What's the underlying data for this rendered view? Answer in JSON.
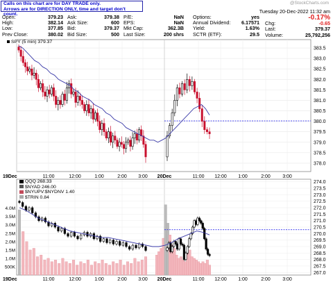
{
  "notice": {
    "line1": "Calls on this chart are for DAY TRADE only.",
    "line2": "Arrows are for DIRECTION ONLY, time and target don't count."
  },
  "quote": {
    "col1": [
      {
        "k": "Open:",
        "v": "379.23"
      },
      {
        "k": "High:",
        "v": "382.14"
      },
      {
        "k": "Low:",
        "v": "377.85"
      },
      {
        "k": "Prev Close:",
        "v": "380.02"
      }
    ],
    "col2": [
      {
        "k": "Ask:",
        "v": "379.38"
      },
      {
        "k": "Ask Size:",
        "v": "600"
      },
      {
        "k": "Bid:",
        "v": "379.37"
      },
      {
        "k": "Bid Size:",
        "v": "500"
      }
    ],
    "col3": [
      {
        "k": "P/E:",
        "v": "NaN"
      },
      {
        "k": "EPS:",
        "v": "NaN"
      },
      {
        "k": "Mkt Cap:",
        "v": "362.3B"
      },
      {
        "k": "Last Size:",
        "v": "200 shrs"
      }
    ],
    "col4": [
      {
        "k": "Options:",
        "v": "yes"
      },
      {
        "k": "Annual Dividend:",
        "v": "6.17571"
      },
      {
        "k": "Yield:",
        "v": "1.63%"
      },
      {
        "k": "SCTR (ETF):",
        "v": "29.5"
      }
    ],
    "col5": [
      {
        "k": "Chg:",
        "v": "-0.65"
      },
      {
        "k": "Last:",
        "v": "379.37"
      },
      {
        "k": "Volume:",
        "v": "25,792,256"
      }
    ],
    "date": "Tuesday  20-Dec-2022  11:32 am",
    "chg_pct": "-0.17%",
    "watermark": "@StockCharts.com"
  },
  "chart_data": [
    {
      "type": "candlestick",
      "panel": "price",
      "legend": "SPY (5 min) 379.37",
      "ylim": [
        377.6,
        383.9
      ],
      "y_ticks": [
        "378.0",
        "378.5",
        "379.0",
        "379.5",
        "380.0",
        "380.5",
        "381.0",
        "381.5",
        "382.0",
        "382.5",
        "383.0",
        "383.5"
      ],
      "x_ticks": [
        "19Dec",
        "11:00",
        "12:00",
        "1:00",
        "2:00",
        "3:00",
        "20Dec",
        "11:00",
        "12:00",
        "1:00",
        "2:00",
        "3:00"
      ],
      "reference_line": 380.02,
      "closes": [
        383.4,
        383.1,
        382.8,
        382.6,
        382.4,
        382.5,
        382.2,
        382.3,
        382.0,
        381.6,
        381.8,
        381.4,
        381.2,
        381.5,
        381.3,
        381.6,
        381.2,
        380.8,
        381.0,
        380.8,
        381.3,
        381.0,
        381.6,
        381.8,
        381.3,
        381.4,
        380.9,
        381.2,
        381.0,
        380.8,
        380.5,
        380.8,
        380.4,
        380.6,
        380.1,
        380.4,
        380.0,
        379.6,
        379.9,
        379.5,
        379.2,
        379.5,
        379.0,
        379.3,
        379.1,
        378.8,
        379.0,
        378.9,
        378.7,
        379.0,
        379.1,
        378.8,
        379.2,
        379.4,
        379.1,
        379.6,
        379.3,
        378.9,
        378.3,
        379.3,
        379.8,
        380.4,
        381.0,
        381.6,
        381.3,
        381.8,
        381.5,
        382.0,
        381.7,
        381.9,
        381.4,
        381.1,
        380.6,
        380.0,
        379.6,
        379.5,
        379.4
      ],
      "moving_average": [
        383.6,
        383.5,
        383.3,
        383.1,
        382.9,
        382.8,
        382.6,
        382.5,
        382.3,
        382.2,
        382.0,
        381.9,
        381.8,
        381.7,
        381.5,
        381.4,
        381.2,
        381.1,
        381.0,
        380.8,
        380.7,
        380.6,
        380.4,
        380.3,
        380.1,
        380.0,
        379.9,
        379.7,
        379.6,
        379.5,
        379.4,
        379.3,
        379.2,
        379.1,
        379.1,
        379.0,
        379.1,
        379.2,
        379.4,
        379.6,
        379.8,
        380.0,
        380.2,
        380.4,
        380.6,
        380.7,
        380.8,
        380.6,
        380.3
      ]
    },
    {
      "type": "line",
      "panel": "breadth",
      "legend": [
        {
          "label": "QQQ 268.33",
          "color": "#000000"
        },
        {
          "label": "$NYAD 246.00",
          "color": "#555555"
        },
        {
          "label": "$NYUPV:$NYDNV 1.40",
          "color": "#c24a5a"
        },
        {
          "label": "$TRIN 0.84",
          "color": "#aaaaaa"
        }
      ],
      "y_ticks": [
        "267.0",
        "267.5",
        "268.0",
        "268.5",
        "269.0",
        "269.5",
        "270.0",
        "270.5",
        "271.0",
        "271.5",
        "272.0",
        "272.5",
        "273.0",
        "273.5",
        "274.0"
      ],
      "volume_ticks": [
        "500K",
        "1.0M",
        "1.5M",
        "2.0M",
        "2.5M",
        "3.0M",
        "3.5M",
        "4.0M"
      ],
      "ylim": [
        266.8,
        274.2
      ],
      "reference_line": 270.3,
      "qqq": [
        272.4,
        272.1,
        271.8,
        272.0,
        271.6,
        271.3,
        271.0,
        271.2,
        270.9,
        270.6,
        270.8,
        270.5,
        270.2,
        270.4,
        270.0,
        269.8,
        270.1,
        269.8,
        269.6,
        269.9,
        270.1,
        269.8,
        270.0,
        269.6,
        269.8,
        269.4,
        269.6,
        269.3,
        269.5,
        269.2,
        269.4,
        269.1,
        269.3,
        269.0,
        268.8,
        269.1,
        268.9,
        269.2,
        269.0,
        268.7,
        268.9,
        269.3,
        268.6,
        269.0,
        269.4,
        269.2,
        268.8,
        269.6,
        269.2,
        269.1,
        268.0,
        268.5,
        269.0,
        269.6,
        270.0,
        270.5,
        271.0,
        270.7,
        271.2,
        271.0,
        270.8,
        270.4,
        269.6,
        268.8,
        268.4,
        268.3
      ],
      "moving_average": [
        272.0,
        271.8,
        271.5,
        271.2,
        271.0,
        270.8,
        270.6,
        270.4,
        270.2,
        270.1,
        270.0,
        269.9,
        269.8,
        269.7,
        269.7,
        269.6,
        269.5,
        269.4,
        269.3,
        269.2,
        269.1,
        269.0,
        269.0,
        269.1,
        269.3,
        269.6,
        269.8,
        270.0,
        270.2,
        270.1,
        269.9
      ],
      "volume_millions": [
        3.9,
        2.6,
        2.0,
        1.5,
        1.6,
        1.1,
        1.2,
        0.9,
        1.0,
        0.8,
        0.9,
        0.7,
        1.0,
        0.8,
        0.7,
        0.9,
        0.6,
        0.8,
        0.7,
        0.9,
        0.6,
        0.8,
        0.7,
        0.9,
        0.7,
        0.6,
        0.8,
        0.7,
        0.9,
        0.6,
        0.8,
        0.7,
        1.0,
        0.8,
        0.9,
        1.1,
        1.2,
        1.4,
        1.6,
        2.2,
        4.2,
        3.1,
        2.4,
        1.8,
        1.6,
        1.2,
        1.0,
        1.1,
        0.9,
        0.8,
        1.3,
        1.5,
        1.1,
        1.0,
        0.9,
        0.8,
        0.7,
        0.8,
        0.7,
        0.9,
        0.6
      ]
    }
  ]
}
